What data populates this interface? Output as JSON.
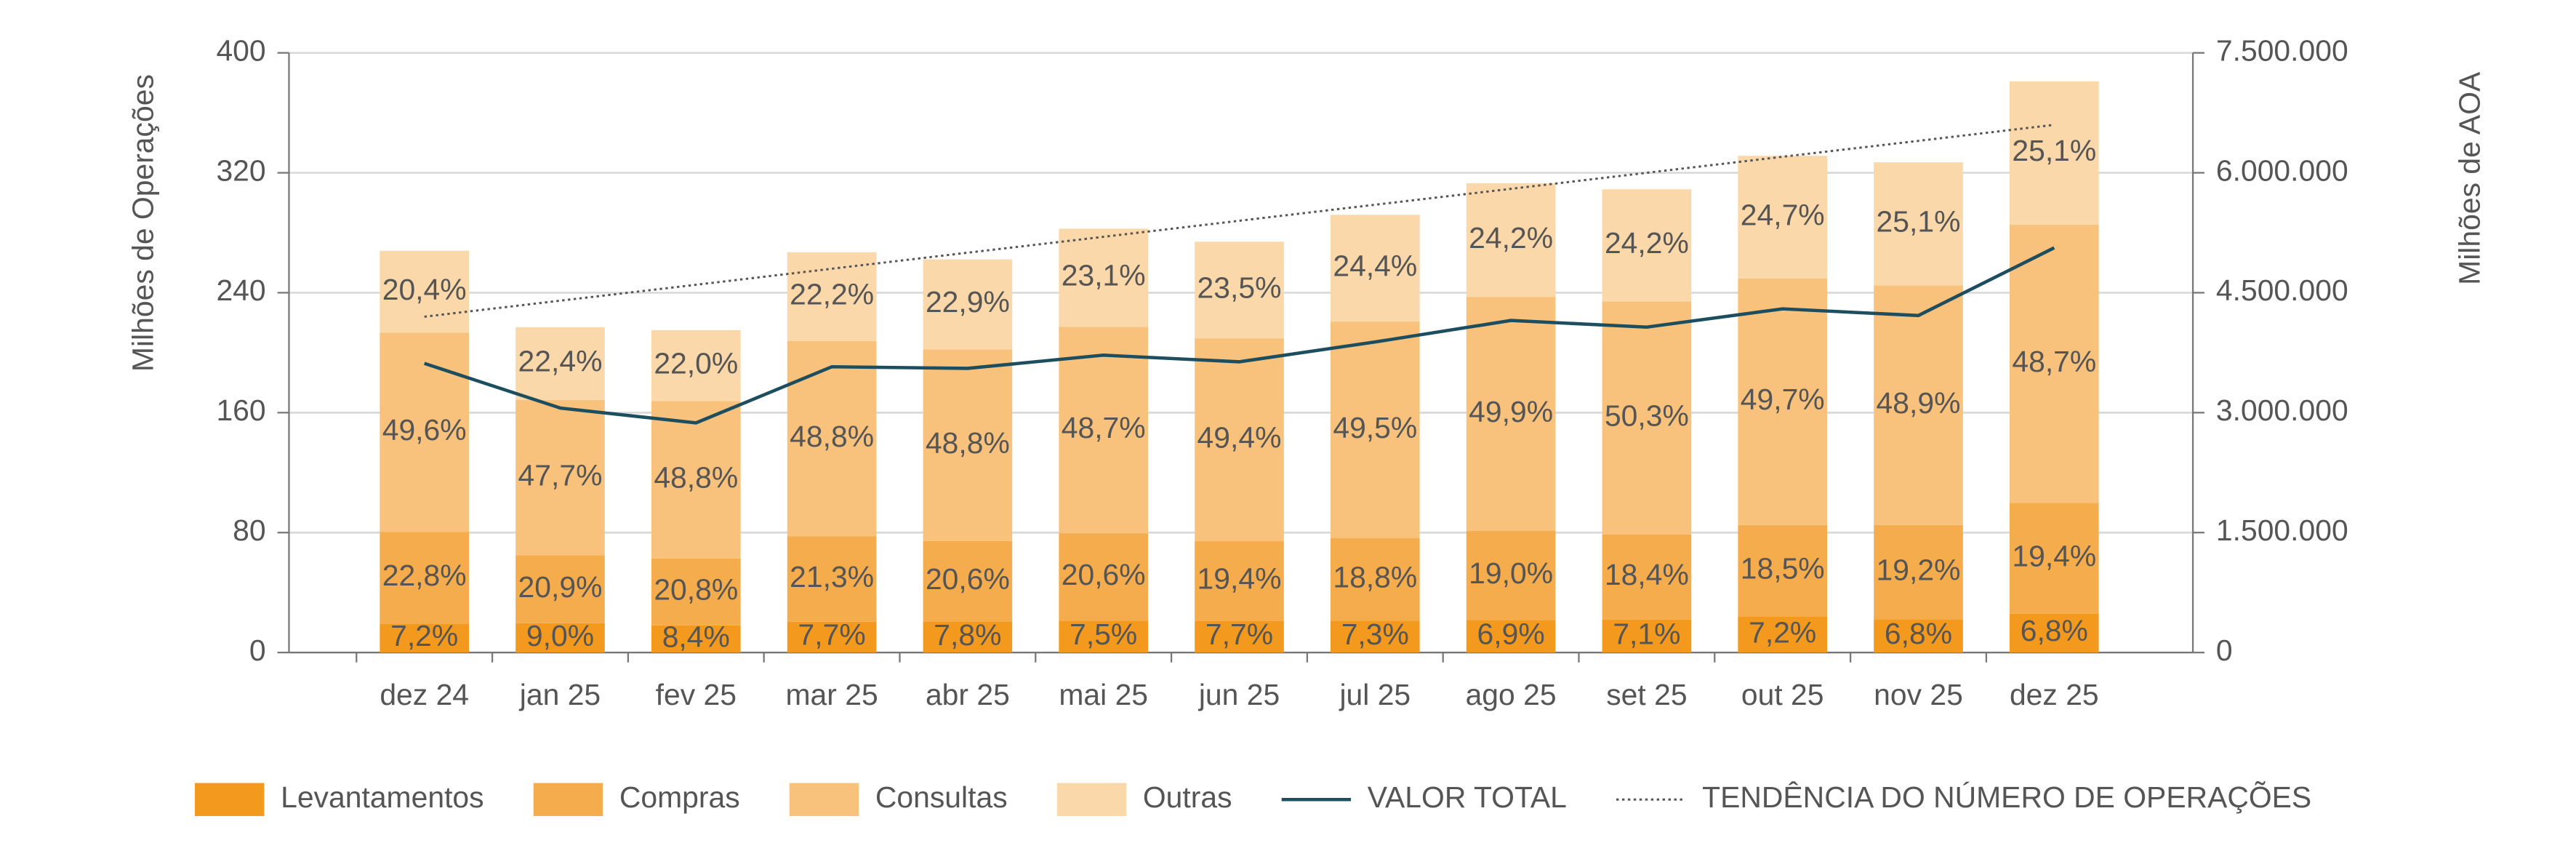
{
  "chart_data": {
    "type": "bar",
    "categories": [
      "dez 24",
      "jan 25",
      "fev 25",
      "mar 25",
      "abr 25",
      "mai 25",
      "jun 25",
      "jul 25",
      "ago 25",
      "set 25",
      "out 25",
      "nov 25",
      "dez 25"
    ],
    "totals": [
      268,
      217,
      215,
      267,
      262,
      283,
      274,
      292,
      313,
      309,
      331,
      327,
      381
    ],
    "ylabel": "Milhões de Operações",
    "y2label": "Milhões de AOA",
    "ylim": [
      0,
      400
    ],
    "yticks": [
      0,
      80,
      160,
      240,
      320,
      400
    ],
    "y2lim": [
      0,
      7500000
    ],
    "y2ticks": [
      {
        "value": 0,
        "label": "0"
      },
      {
        "value": 1500000,
        "label": "1.500.000"
      },
      {
        "value": 3000000,
        "label": "3.000.000"
      },
      {
        "value": 4500000,
        "label": "4.500.000"
      },
      {
        "value": 6000000,
        "label": "6.000.000"
      },
      {
        "value": 7500000,
        "label": "7.500.000"
      }
    ],
    "grid": true,
    "legend": "bottom",
    "series": [
      {
        "name": "Levantamentos",
        "color": "#f39a1e",
        "type": "bar",
        "values": [
          7.2,
          9.0,
          8.4,
          7.7,
          7.8,
          7.5,
          7.7,
          7.3,
          6.9,
          7.1,
          7.2,
          6.8,
          6.8
        ],
        "value_labels": [
          "7,2%",
          "9,0%",
          "8,4%",
          "7,7%",
          "7,8%",
          "7,5%",
          "7,7%",
          "7,3%",
          "6,9%",
          "7,1%",
          "7,2%",
          "6,8%",
          "6,8%"
        ]
      },
      {
        "name": "Compras",
        "color": "#f5ac4d",
        "type": "bar",
        "values": [
          22.8,
          20.9,
          20.8,
          21.3,
          20.6,
          20.6,
          19.4,
          18.8,
          19.0,
          18.4,
          18.5,
          19.2,
          19.4
        ],
        "value_labels": [
          "22,8%",
          "20,9%",
          "20,8%",
          "21,3%",
          "20,6%",
          "20,6%",
          "19,4%",
          "18,8%",
          "19,0%",
          "18,4%",
          "18,5%",
          "19,2%",
          "19,4%"
        ]
      },
      {
        "name": "Consultas",
        "color": "#f8c27c",
        "type": "bar",
        "values": [
          49.6,
          47.7,
          48.8,
          48.8,
          48.8,
          48.7,
          49.4,
          49.5,
          49.9,
          50.3,
          49.7,
          48.9,
          48.7
        ],
        "value_labels": [
          "49,6%",
          "47,7%",
          "48,8%",
          "48,8%",
          "48,8%",
          "48,7%",
          "49,4%",
          "49,5%",
          "49,9%",
          "50,3%",
          "49,7%",
          "48,9%",
          "48,7%"
        ]
      },
      {
        "name": "Outras",
        "color": "#fbd8a9",
        "type": "bar",
        "values": [
          20.4,
          22.4,
          22.0,
          22.2,
          22.9,
          23.1,
          23.5,
          24.4,
          24.2,
          24.2,
          24.7,
          25.1,
          25.1
        ],
        "value_labels": [
          "20,4%",
          "22,4%",
          "22,0%",
          "22,2%",
          "22,9%",
          "23,1%",
          "23,5%",
          "24,4%",
          "24,2%",
          "24,2%",
          "24,7%",
          "25,1%",
          "25,1%"
        ]
      },
      {
        "name": "VALOR TOTAL",
        "color": "#1d4e5f",
        "type": "line",
        "axis": "y2",
        "values": [
          3616000,
          3058000,
          2872000,
          3574000,
          3554000,
          3719000,
          3636000,
          3884000,
          4153000,
          4070000,
          4298000,
          4215000,
          5062000
        ]
      },
      {
        "name": "TENDÊNCIA DO NÚMERO DE OPERAÇÕES",
        "color": "#555555",
        "type": "line",
        "style": "dotted",
        "values": [
          224,
          234.7,
          245.3,
          256,
          266.7,
          277.3,
          288,
          298.7,
          309.3,
          320,
          330.7,
          341.3,
          352
        ]
      }
    ]
  }
}
